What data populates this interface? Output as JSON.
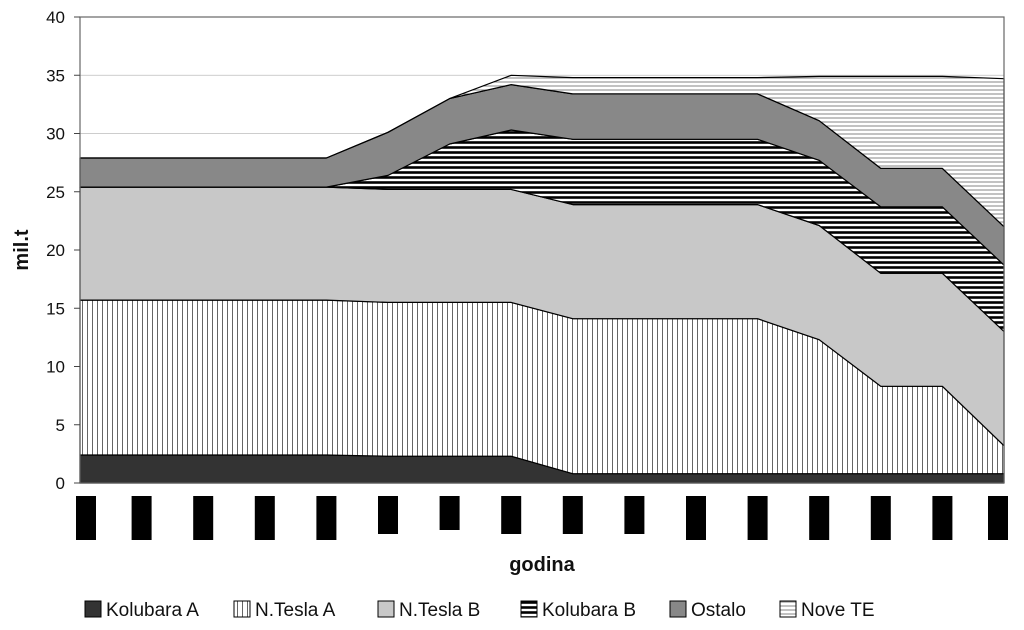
{
  "chart_data": {
    "type": "area",
    "stacked": true,
    "title": "",
    "xlabel": "godina",
    "ylabel": "mil.t",
    "ylim": [
      0,
      40
    ],
    "yticks": [
      0,
      5,
      10,
      15,
      20,
      25,
      30,
      35,
      40
    ],
    "categories": [
      "",
      "",
      "",
      "",
      "",
      "",
      "",
      "",
      "",
      "",
      "",
      "",
      "",
      "",
      "",
      ""
    ],
    "grid": "horizontal",
    "legend_position": "bottom",
    "series": [
      {
        "name": "Kolubara A",
        "pattern": "solid",
        "color": "#333333",
        "values": [
          2.4,
          2.4,
          2.4,
          2.4,
          2.4,
          2.3,
          2.3,
          2.3,
          0.8,
          0.8,
          0.8,
          0.8,
          0.8,
          0.8,
          0.8,
          0.8
        ]
      },
      {
        "name": "N.Tesla A",
        "pattern": "vertical-lines",
        "color": "#ffffff",
        "values": [
          13.3,
          13.3,
          13.3,
          13.3,
          13.3,
          13.2,
          13.2,
          13.2,
          13.3,
          13.3,
          13.3,
          13.3,
          11.5,
          7.5,
          7.5,
          2.4
        ]
      },
      {
        "name": "N.Tesla B",
        "pattern": "solid",
        "color": "#c8c8c8",
        "values": [
          9.7,
          9.7,
          9.7,
          9.7,
          9.7,
          9.7,
          9.7,
          9.7,
          9.8,
          9.8,
          9.8,
          9.8,
          9.8,
          9.7,
          9.7,
          9.8
        ]
      },
      {
        "name": "Kolubara B",
        "pattern": "horizontal-lines-bold",
        "color": "#ffffff",
        "values": [
          0,
          0,
          0,
          0,
          0,
          1.2,
          3.9,
          5.1,
          5.6,
          5.6,
          5.6,
          5.6,
          5.6,
          5.7,
          5.7,
          5.7
        ]
      },
      {
        "name": "Ostalo",
        "pattern": "solid",
        "color": "#888888",
        "values": [
          2.5,
          2.5,
          2.5,
          2.5,
          2.5,
          3.7,
          3.9,
          3.9,
          3.9,
          3.9,
          3.9,
          3.9,
          3.4,
          3.3,
          3.3,
          3.3
        ]
      },
      {
        "name": "Nove TE",
        "pattern": "horizontal-lines-thin",
        "color": "#ffffff",
        "values": [
          0,
          0,
          0,
          0,
          0,
          0,
          0,
          0.8,
          1.4,
          1.4,
          1.4,
          1.4,
          3.8,
          7.9,
          7.9,
          12.7
        ]
      }
    ]
  }
}
